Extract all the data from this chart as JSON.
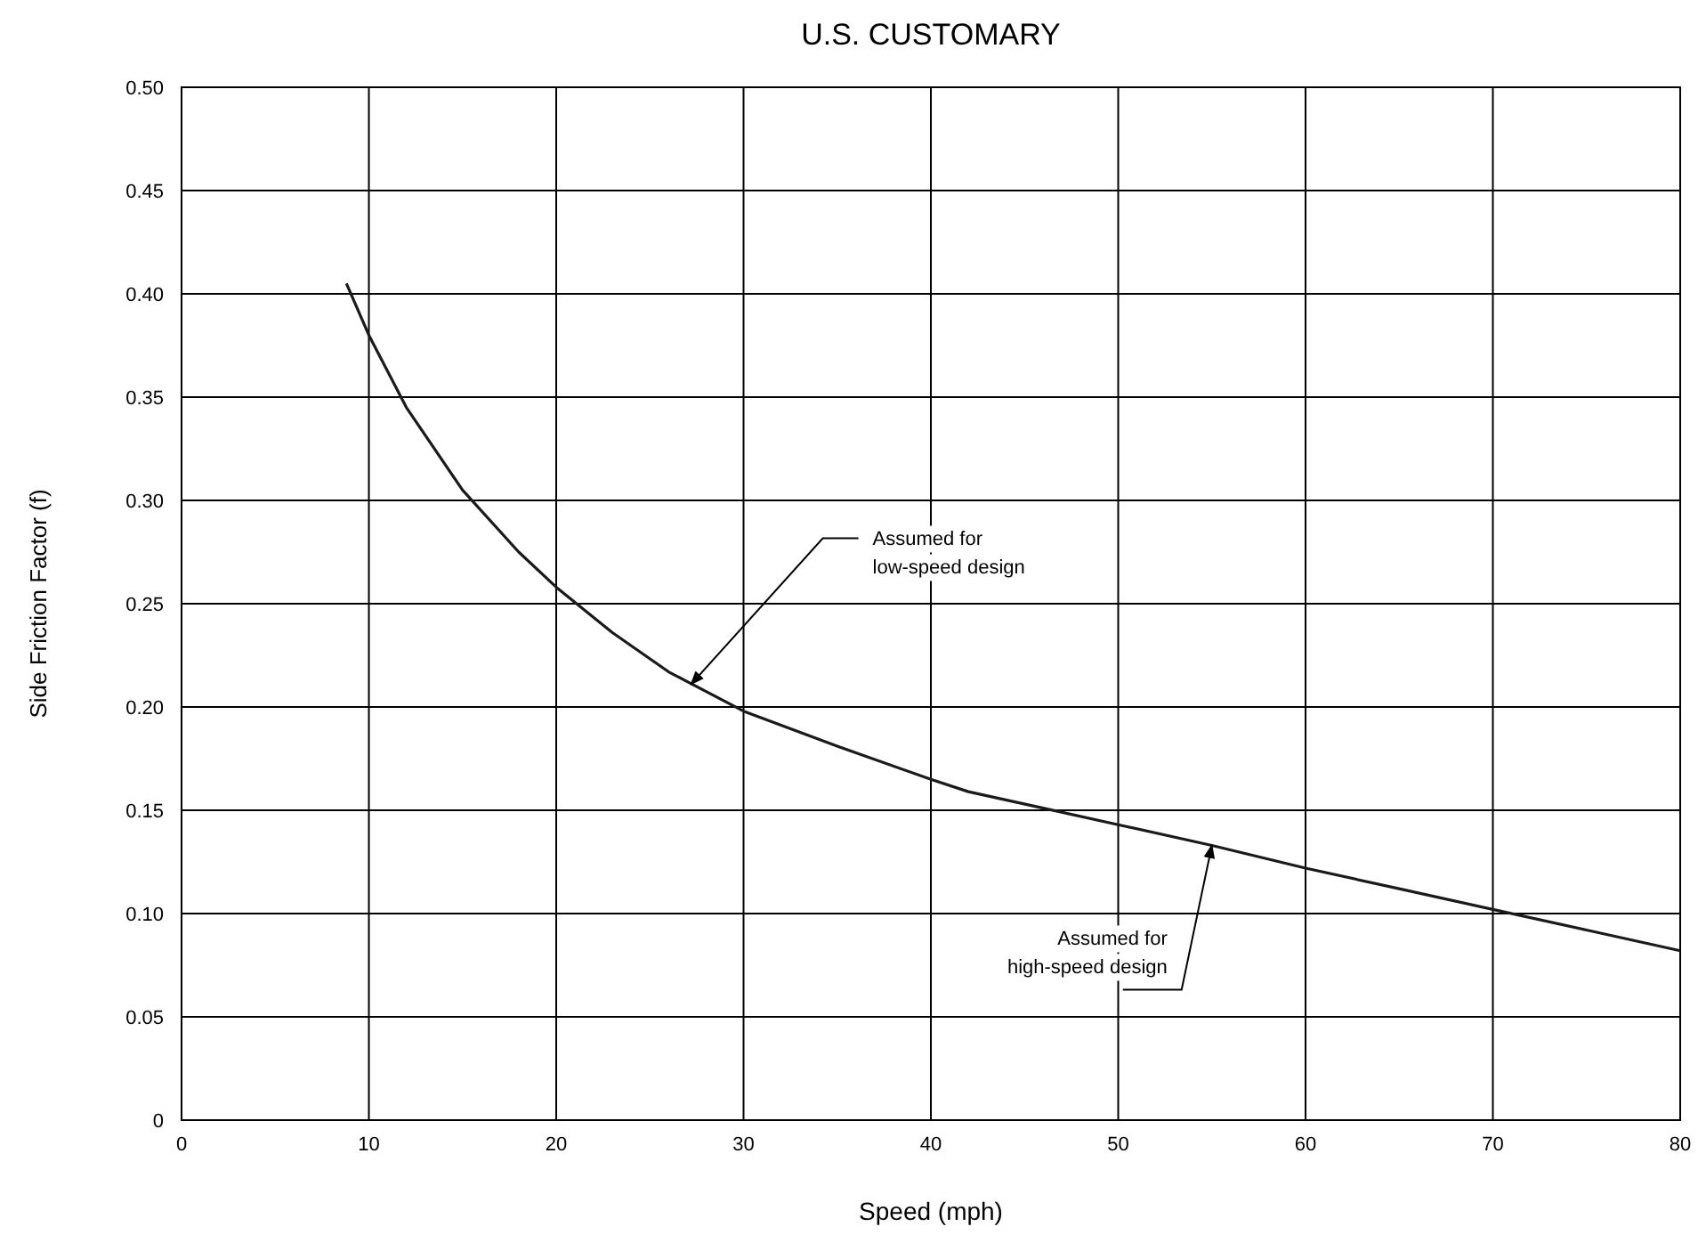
{
  "chart_data": {
    "type": "line",
    "title": "U.S. CUSTOMARY",
    "xlabel": "Speed (mph)",
    "ylabel": "Side Friction Factor (f)",
    "x": [
      8.8,
      10,
      12,
      15,
      18,
      20,
      23,
      26,
      30,
      35,
      40,
      42,
      46,
      50,
      55,
      60,
      65,
      70,
      75,
      80
    ],
    "series": [
      {
        "color": "#1a1a1a",
        "values": [
          0.405,
          0.38,
          0.345,
          0.305,
          0.275,
          0.258,
          0.236,
          0.217,
          0.198,
          0.181,
          0.165,
          0.159,
          0.151,
          0.143,
          0.133,
          0.122,
          0.112,
          0.102,
          0.092,
          0.082
        ]
      }
    ],
    "xlim": [
      0,
      80
    ],
    "xticks": [
      0,
      10,
      20,
      30,
      40,
      50,
      60,
      70,
      80
    ],
    "ylim": [
      0,
      0.5
    ],
    "yticks": [
      0,
      0.05,
      {
        "value": 0.1,
        "label": "0.10"
      },
      0.15,
      {
        "value": 0.2,
        "label": "0.20"
      },
      0.25,
      {
        "value": 0.3,
        "label": "0.30"
      },
      0.35,
      {
        "value": 0.4,
        "label": "0.40"
      },
      0.45,
      {
        "value": 0.5,
        "label": "0.50"
      }
    ],
    "grid": true,
    "marker": "none",
    "line_style": "solid",
    "annotations": [
      {
        "text": "Assumed for\nlow-speed design",
        "x": 27.2,
        "y": 0.211
      },
      {
        "text": "Assumed for\nhigh-speed design",
        "x": 55,
        "y": 0.133
      }
    ]
  }
}
